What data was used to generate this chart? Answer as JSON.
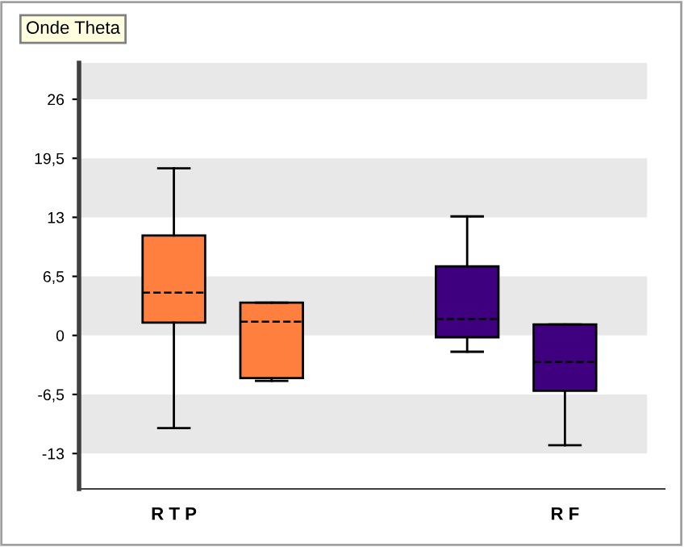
{
  "chart_data": {
    "type": "box",
    "title": "Onde Theta",
    "categories": [
      "R T P",
      null,
      null,
      null,
      "R F"
    ],
    "boxes": [
      {
        "low": -10.2,
        "q1": 1.4,
        "median": 4.7,
        "q3": 11.0,
        "high": 18.4
      },
      {
        "low": -5.0,
        "q1": -4.7,
        "median": 1.5,
        "q3": 3.6,
        "high": 3.6
      },
      null,
      {
        "low": -1.8,
        "q1": -0.2,
        "median": 1.8,
        "q3": 7.6,
        "high": 13.1
      },
      {
        "low": -12.1,
        "q1": -6.1,
        "median": -2.9,
        "q3": 1.2,
        "high": 1.2
      }
    ],
    "colors": [
      "#ff7f3f",
      "#ff7f3f",
      null,
      "#3f007f",
      "#3f007f"
    ],
    "ylim": [
      -16.9,
      30.0
    ],
    "yticks": [
      {
        "value": -13,
        "label": "-13"
      },
      {
        "value": -6.5,
        "label": "-6,5"
      },
      0,
      {
        "value": 6.5,
        "label": "6,5"
      },
      13,
      {
        "value": 19.5,
        "label": "19,5"
      },
      26
    ]
  }
}
